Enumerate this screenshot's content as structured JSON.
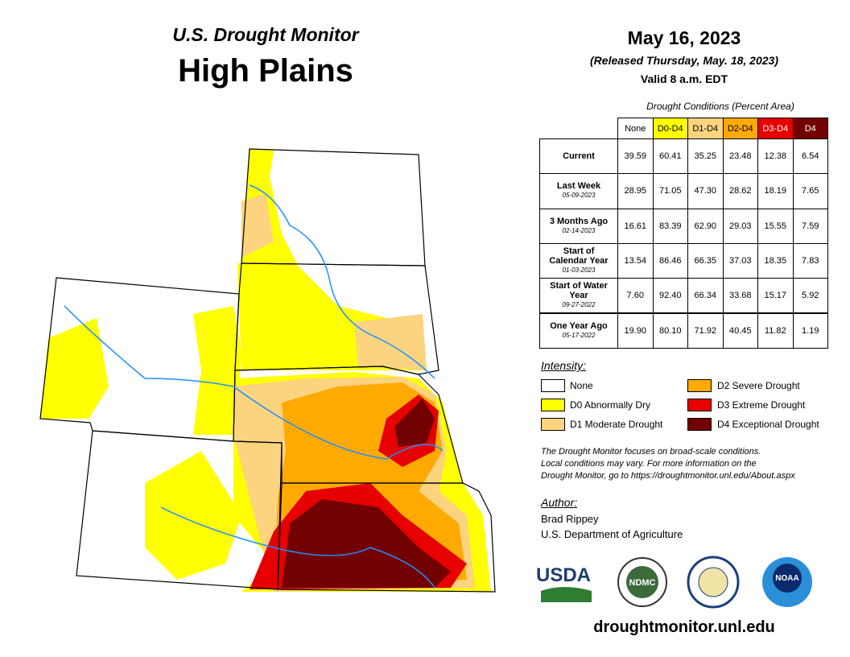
{
  "header": {
    "subtitle": "U.S. Drought Monitor",
    "title": "High Plains",
    "date": "May 16, 2023",
    "released": "(Released Thursday, May. 18, 2023)",
    "valid": "Valid 8 a.m. EDT"
  },
  "table": {
    "caption": "Drought Conditions (Percent Area)",
    "columns": [
      {
        "label": "None",
        "color": "#ffffff"
      },
      {
        "label": "D0-D4",
        "color": "#ffff00"
      },
      {
        "label": "D1-D4",
        "color": "#fcd37f"
      },
      {
        "label": "D2-D4",
        "color": "#ffaa00"
      },
      {
        "label": "D3-D4",
        "color": "#e60000"
      },
      {
        "label": "D4",
        "color": "#730000"
      }
    ],
    "rows": [
      {
        "label": "Current",
        "values": [
          "39.59",
          "60.41",
          "35.25",
          "23.48",
          "12.38",
          "6.54"
        ]
      },
      {
        "label": "Last Week",
        "date": "05-09-2023",
        "values": [
          "28.95",
          "71.05",
          "47.30",
          "28.62",
          "18.19",
          "7.65"
        ]
      },
      {
        "label": "3 Months Ago",
        "date": "02-14-2023",
        "values": [
          "16.61",
          "83.39",
          "62.90",
          "29.03",
          "15.55",
          "7.59"
        ]
      },
      {
        "label": "Start of Calendar Year",
        "date": "01-03-2023",
        "values": [
          "13.54",
          "86.46",
          "66.35",
          "37.03",
          "18.35",
          "7.83"
        ]
      },
      {
        "label": "Start of Water Year",
        "date": "09-27-2022",
        "values": [
          "7.60",
          "92.40",
          "66.34",
          "33.68",
          "15.17",
          "5.92"
        ]
      },
      {
        "label": "One Year Ago",
        "date": "05-17-2022",
        "values": [
          "19.90",
          "80.10",
          "71.92",
          "40.45",
          "11.82",
          "1.19"
        ]
      }
    ]
  },
  "legend": {
    "title": "Intensity:",
    "items": [
      {
        "label": "None",
        "color": "#ffffff"
      },
      {
        "label": "D0 Abnormally Dry",
        "color": "#ffff00"
      },
      {
        "label": "D1 Moderate Drought",
        "color": "#fcd37f"
      },
      {
        "label": "D2 Severe Drought",
        "color": "#ffaa00"
      },
      {
        "label": "D3 Extreme Drought",
        "color": "#e60000"
      },
      {
        "label": "D4 Exceptional Drought",
        "color": "#730000"
      }
    ]
  },
  "note": [
    "The Drought Monitor focuses on broad-scale conditions.",
    "Local conditions may vary. For more information on the",
    "Drought Monitor, go to https://droughtmonitor.unl.edu/About.aspx"
  ],
  "author": {
    "title": "Author:",
    "name": "Brad Rippey",
    "org": "U.S. Department of Agriculture"
  },
  "logos": [
    "USDA",
    "NDMC",
    "NOAA"
  ],
  "url": "droughtmonitor.unl.edu"
}
